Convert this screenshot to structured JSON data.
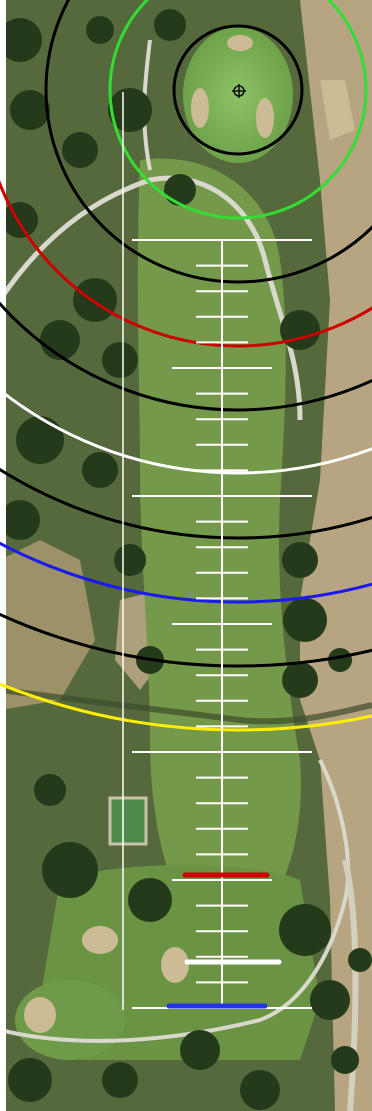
{
  "hole_map": {
    "ring_colors": {
      "green_target": "#33dd33",
      "black": "#000000",
      "red": "#cc0000",
      "white": "#ffffff",
      "blue": "#1a1aee",
      "yellow": "#ffee00"
    },
    "tee_colors": {
      "red": "#cc0000",
      "white": "#ffffff",
      "blue": "#2233ee"
    },
    "arc_order": [
      "black",
      "red",
      "black",
      "white",
      "black",
      "blue",
      "black",
      "yellow"
    ],
    "tees": [
      "red",
      "white",
      "blue"
    ],
    "icons": {
      "pin": "crosshair-icon"
    },
    "terrain_colors": {
      "rough": "#53683a",
      "fairway": "#739a47",
      "green": "#7fb25a",
      "sand": "#c9b48d",
      "trees": "#253a1c",
      "desert": "#b9a785",
      "path": "#d8d8cc",
      "water": "#4f8a4a"
    }
  }
}
